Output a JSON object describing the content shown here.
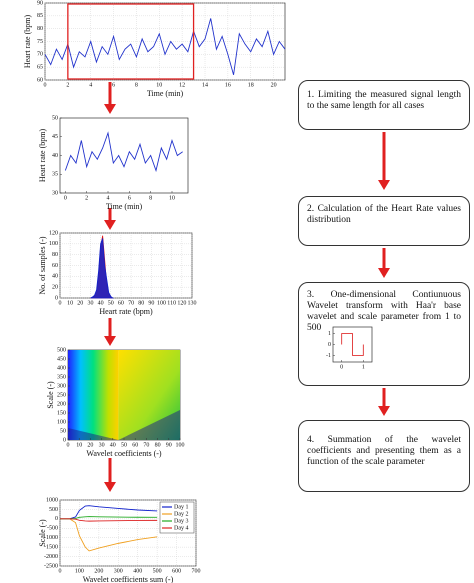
{
  "chart_data": [
    {
      "type": "line",
      "xlabel": "Time (min)",
      "ylabel": "Heart rate (bpm)",
      "color": "#2233cc",
      "grid": true,
      "xlim": [
        0,
        21
      ],
      "xticks": [
        0,
        2,
        4,
        6,
        8,
        10,
        12,
        14,
        16,
        18,
        20
      ],
      "ylim": [
        60,
        90
      ],
      "yticks": [
        60,
        65,
        70,
        75,
        80,
        85,
        90
      ],
      "highlight_range": [
        2,
        13
      ],
      "highlight_color": "#e02020",
      "x": [
        0,
        0.5,
        1,
        1.5,
        2,
        2.5,
        3,
        3.5,
        4,
        4.5,
        5,
        5.5,
        6,
        6.5,
        7,
        7.5,
        8,
        8.5,
        9,
        9.5,
        10,
        10.5,
        11,
        11.5,
        12,
        12.5,
        13,
        13.5,
        14,
        14.5,
        15,
        15.5,
        16,
        16.5,
        17,
        17.5,
        18,
        18.5,
        19,
        19.5,
        20,
        20.5,
        21
      ],
      "values": [
        70,
        66,
        72,
        68,
        74,
        65,
        71,
        69,
        75,
        67,
        73,
        70,
        77,
        68,
        72,
        74,
        69,
        76,
        71,
        73,
        78,
        70,
        75,
        72,
        74,
        71,
        79,
        73,
        76,
        84,
        72,
        77,
        70,
        62,
        78,
        74,
        71,
        76,
        73,
        79,
        70,
        75,
        72
      ]
    },
    {
      "type": "line",
      "xlabel": "Time (min)",
      "ylabel": "Heart rate (bpm)",
      "color": "#2233cc",
      "grid": false,
      "xlim": [
        -0.5,
        11.5
      ],
      "xticks": [
        0,
        2,
        4,
        6,
        8,
        10
      ],
      "ylim": [
        30,
        50
      ],
      "yticks": [
        30,
        35,
        40,
        45,
        50
      ],
      "x": [
        0,
        0.5,
        1,
        1.5,
        2,
        2.5,
        3,
        3.5,
        4,
        4.5,
        5,
        5.5,
        6,
        6.5,
        7,
        7.5,
        8,
        8.5,
        9,
        9.5,
        10,
        10.5,
        11
      ],
      "values": [
        36,
        40,
        38,
        44,
        37,
        41,
        39,
        42,
        46,
        38,
        40,
        37,
        41,
        39,
        43,
        38,
        40,
        36,
        42,
        39,
        44,
        40,
        41
      ]
    },
    {
      "type": "area",
      "xlabel": "Heart rate (bpm)",
      "ylabel": "No. of samples (-)",
      "grid": true,
      "xlim": [
        0,
        130
      ],
      "xticks": [
        0,
        10,
        20,
        30,
        40,
        50,
        60,
        70,
        80,
        90,
        100,
        110,
        120,
        130
      ],
      "ylim": [
        0,
        120
      ],
      "yticks": [
        0,
        20,
        40,
        60,
        80,
        100,
        120
      ],
      "x": [
        30,
        32,
        34,
        36,
        38,
        40,
        42,
        44,
        46,
        48,
        50,
        52
      ],
      "series": [
        {
          "color": "#dd1111",
          "values": [
            0,
            1,
            3,
            10,
            40,
            95,
            115,
            70,
            25,
            8,
            2,
            0
          ]
        },
        {
          "color": "#1122cc",
          "values": [
            0,
            2,
            5,
            15,
            50,
            100,
            110,
            60,
            35,
            10,
            3,
            0
          ]
        }
      ]
    },
    {
      "type": "heatmap",
      "xlabel": "Wavelet coefficients (-)",
      "ylabel": "Scale (-)",
      "grid": false,
      "xlim": [
        0,
        100
      ],
      "xticks": [
        0,
        10,
        20,
        30,
        40,
        50,
        60,
        70,
        80,
        90,
        100
      ],
      "ylim": [
        0,
        500
      ],
      "yticks": [
        0,
        50,
        100,
        150,
        200,
        250,
        300,
        350,
        400,
        450,
        500
      ]
    },
    {
      "type": "line",
      "xlabel": "Wavelet coefficients sum (-)",
      "ylabel": "Scale (-)",
      "grid": true,
      "legend": "upper right",
      "xlim": [
        0,
        700
      ],
      "xticks": [
        0,
        100,
        200,
        300,
        400,
        500,
        600,
        700
      ],
      "ylim": [
        -2500,
        1000
      ],
      "yticks": [
        -2500,
        -2000,
        -1500,
        -1000,
        -500,
        0,
        500,
        1000
      ],
      "x": [
        0,
        50,
        80,
        100,
        130,
        150,
        200,
        300,
        400,
        500
      ],
      "series": [
        {
          "name": "Day 1",
          "color": "#1122cc",
          "values": [
            0,
            0,
            100,
            450,
            680,
            700,
            640,
            550,
            470,
            420
          ]
        },
        {
          "name": "Day 2",
          "color": "#f0a020",
          "values": [
            0,
            0,
            -200,
            -900,
            -1500,
            -1700,
            -1550,
            -1300,
            -1100,
            -950
          ]
        },
        {
          "name": "Day 3",
          "color": "#22aa22",
          "values": [
            0,
            0,
            20,
            80,
            110,
            120,
            110,
            95,
            85,
            80
          ]
        },
        {
          "name": "Day 4",
          "color": "#dd2222",
          "values": [
            0,
            0,
            -20,
            -80,
            -110,
            -120,
            -110,
            -95,
            -85,
            -80
          ]
        }
      ]
    },
    {
      "type": "line",
      "color": "#e03030",
      "grid": false,
      "xlim": [
        -0.4,
        1.4
      ],
      "xticks": [
        0,
        1
      ],
      "ylim": [
        -1.6,
        1.6
      ],
      "yticks": [
        -1,
        0,
        1
      ],
      "x": [
        0,
        0,
        0.5,
        0.5,
        1,
        1
      ],
      "values": [
        0,
        1,
        1,
        -1,
        -1,
        0
      ]
    }
  ],
  "steps": [
    "1. Limiting the measured signal length to the same length for all cases",
    "2. Calculation of the Heart Rate values distribution",
    "3. One-dimensional Contiunuous Wavelet transform with Haa'r base wavelet and scale parameter from 1 to 500",
    "4. Summation of the wavelet coefficients and presenting them as a function of the scale parameter"
  ]
}
